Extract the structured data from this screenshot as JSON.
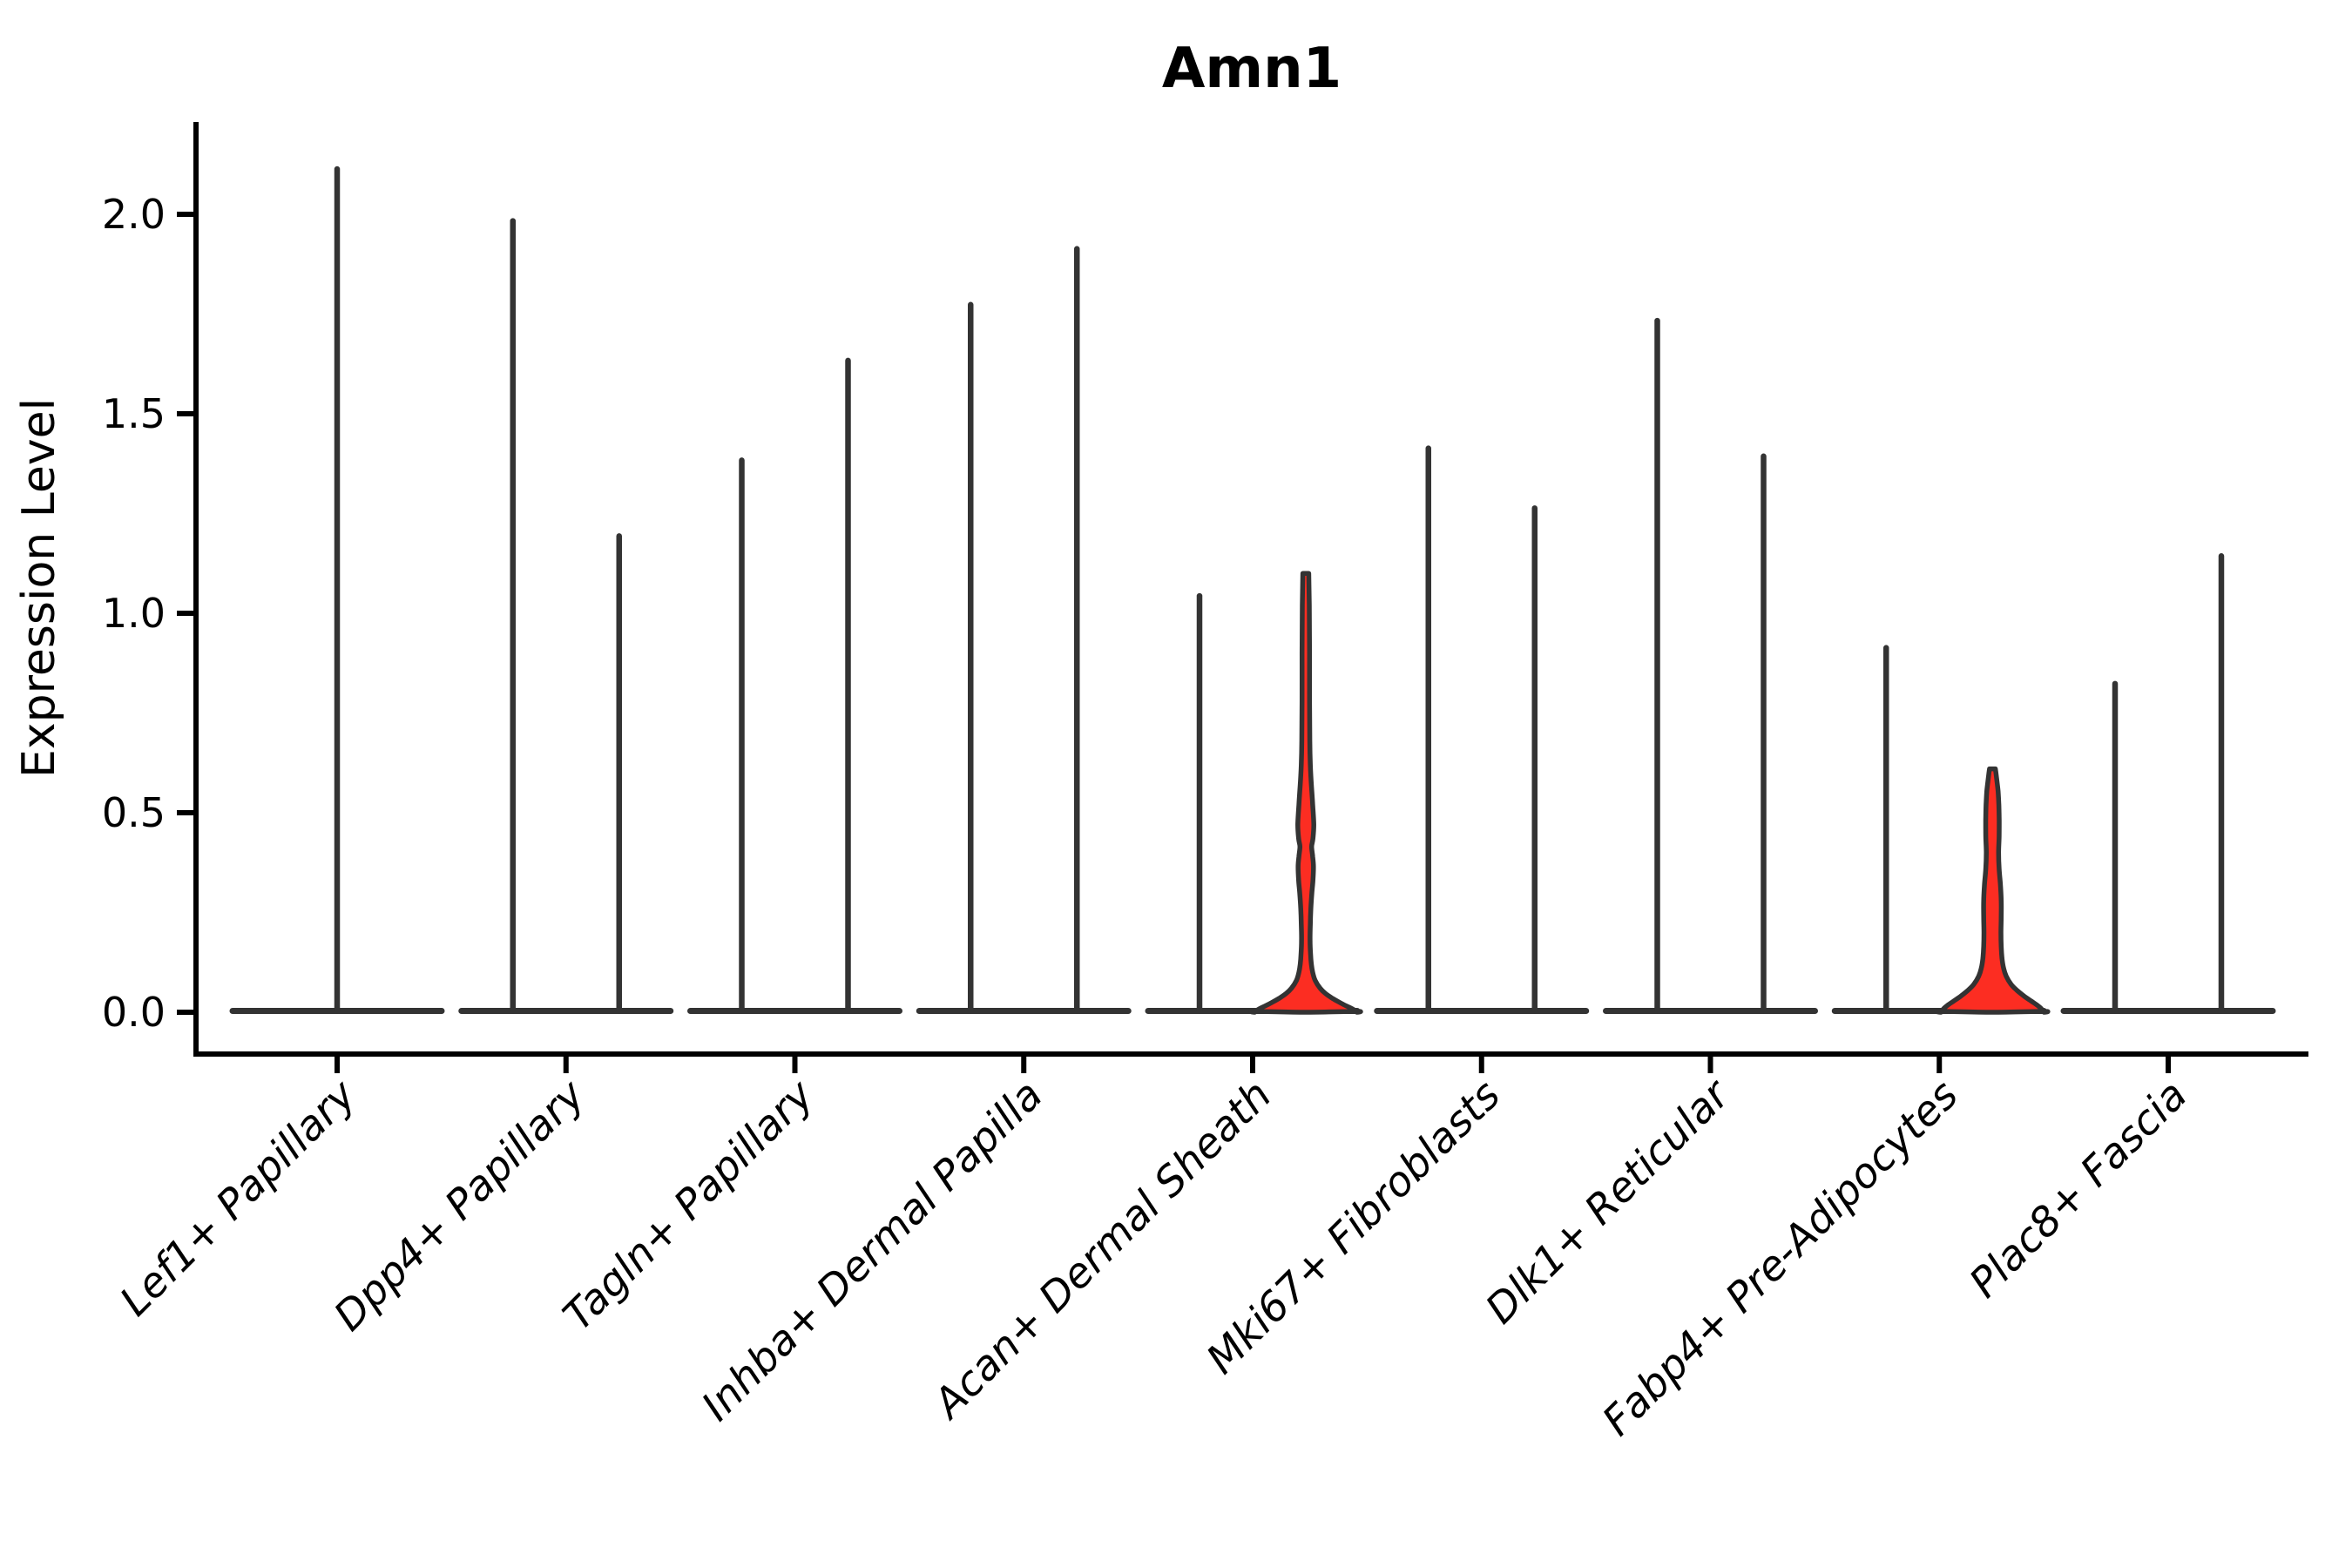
{
  "figure": {
    "background": "#ffffff"
  },
  "chart_data": {
    "type": "violin",
    "title": "Amn1",
    "ylabel": "Expression Level",
    "xlabel": "",
    "ylim": [
      -0.105,
      2.23
    ],
    "grid": false,
    "legend": null,
    "x_tick_rotation": 45,
    "yticks": [
      {
        "value": 0.0,
        "label": "0.0"
      },
      {
        "value": 0.5,
        "label": "0.5"
      },
      {
        "value": 1.0,
        "label": "1.0"
      },
      {
        "value": 1.5,
        "label": "1.5"
      },
      {
        "value": 2.0,
        "label": "2.0"
      }
    ],
    "colors": {
      "axis": "#000000",
      "violin_outline": "#333333",
      "violin_fill_highlight": "#FC2D22"
    },
    "categories": [
      {
        "label": "Lef1+ Papillary",
        "violins": [
          {
            "group": "single",
            "max": 2.12,
            "filled": false
          }
        ]
      },
      {
        "label": "Dpp4+ Papillary",
        "violins": [
          {
            "group": "left",
            "max": 1.99,
            "filled": false
          },
          {
            "group": "right",
            "max": 1.2,
            "filled": false
          }
        ]
      },
      {
        "label": "Tagln+ Papillary",
        "violins": [
          {
            "group": "left",
            "max": 1.39,
            "filled": false
          },
          {
            "group": "right",
            "max": 1.64,
            "filled": false
          }
        ]
      },
      {
        "label": "Inhba+ Dermal Papilla",
        "violins": [
          {
            "group": "left",
            "max": 1.78,
            "filled": false
          },
          {
            "group": "right",
            "max": 1.92,
            "filled": false
          }
        ]
      },
      {
        "label": "Acan+ Dermal Sheath",
        "violins": [
          {
            "group": "left",
            "max": 1.05,
            "filled": false
          },
          {
            "group": "right",
            "max": 1.1,
            "filled": true,
            "profile": [
              [
                1.1,
                0.055
              ],
              [
                1.02,
                0.065
              ],
              [
                0.9,
                0.07
              ],
              [
                0.78,
                0.07
              ],
              [
                0.68,
                0.075
              ],
              [
                0.62,
                0.085
              ],
              [
                0.57,
                0.105
              ],
              [
                0.52,
                0.13
              ],
              [
                0.47,
                0.15
              ],
              [
                0.435,
                0.135
              ],
              [
                0.415,
                0.11
              ],
              [
                0.39,
                0.13
              ],
              [
                0.365,
                0.145
              ],
              [
                0.33,
                0.135
              ],
              [
                0.3,
                0.115
              ],
              [
                0.26,
                0.095
              ],
              [
                0.22,
                0.085
              ],
              [
                0.18,
                0.08
              ],
              [
                0.145,
                0.09
              ],
              [
                0.12,
                0.105
              ],
              [
                0.1,
                0.13
              ],
              [
                0.08,
                0.175
              ],
              [
                0.06,
                0.27
              ],
              [
                0.047,
                0.37
              ],
              [
                0.035,
                0.5
              ],
              [
                0.025,
                0.63
              ],
              [
                0.016,
                0.76
              ],
              [
                0.009,
                0.87
              ],
              [
                0.004,
                0.93
              ],
              [
                0.0,
                0.96
              ]
            ]
          }
        ]
      },
      {
        "label": "Mki67+ Fibroblasts",
        "violins": [
          {
            "group": "left",
            "max": 1.42,
            "filled": false
          },
          {
            "group": "right",
            "max": 1.27,
            "filled": false
          }
        ]
      },
      {
        "label": "Dlk1+ Reticular",
        "violins": [
          {
            "group": "left",
            "max": 1.74,
            "filled": false
          },
          {
            "group": "right",
            "max": 1.4,
            "filled": false
          }
        ]
      },
      {
        "label": "Fabp4+ Pre-Adipocytes",
        "violins": [
          {
            "group": "left",
            "max": 0.92,
            "filled": false
          },
          {
            "group": "right",
            "max": 0.62,
            "filled": true,
            "profile": [
              [
                0.61,
                0.055
              ],
              [
                0.585,
                0.08
              ],
              [
                0.555,
                0.105
              ],
              [
                0.52,
                0.12
              ],
              [
                0.48,
                0.127
              ],
              [
                0.44,
                0.125
              ],
              [
                0.4,
                0.115
              ],
              [
                0.36,
                0.125
              ],
              [
                0.32,
                0.15
              ],
              [
                0.28,
                0.165
              ],
              [
                0.24,
                0.165
              ],
              [
                0.2,
                0.16
              ],
              [
                0.165,
                0.165
              ],
              [
                0.135,
                0.18
              ],
              [
                0.11,
                0.21
              ],
              [
                0.09,
                0.26
              ],
              [
                0.07,
                0.35
              ],
              [
                0.055,
                0.46
              ],
              [
                0.04,
                0.6
              ],
              [
                0.028,
                0.73
              ],
              [
                0.018,
                0.84
              ],
              [
                0.01,
                0.91
              ],
              [
                0.004,
                0.95
              ],
              [
                0.0,
                0.97
              ]
            ]
          }
        ]
      },
      {
        "label": "Plac8+ Fascia",
        "violins": [
          {
            "group": "left",
            "max": 0.83,
            "filled": false
          },
          {
            "group": "right",
            "max": 1.15,
            "filled": false
          }
        ]
      }
    ]
  }
}
